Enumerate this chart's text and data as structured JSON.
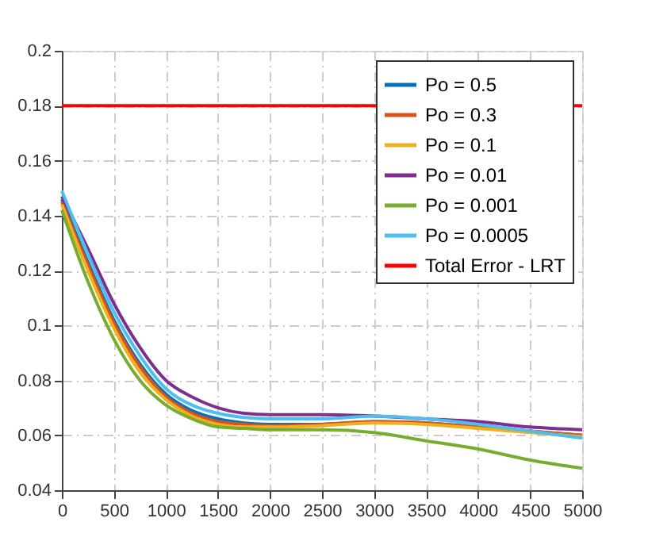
{
  "chart_data": {
    "type": "line",
    "x": [
      0,
      250,
      500,
      750,
      1000,
      1250,
      1500,
      1750,
      2000,
      2500,
      3000,
      3500,
      4000,
      4500,
      5000
    ],
    "series": [
      {
        "name": "Po = 0.5",
        "color": "#0072bd",
        "values": [
          0.146,
          0.123,
          0.102,
          0.086,
          0.075,
          0.069,
          0.066,
          0.0645,
          0.064,
          0.064,
          0.065,
          0.0645,
          0.063,
          0.0615,
          0.06
        ]
      },
      {
        "name": "Po = 0.3",
        "color": "#d95319",
        "values": [
          0.145,
          0.122,
          0.101,
          0.085,
          0.074,
          0.068,
          0.065,
          0.064,
          0.0635,
          0.064,
          0.065,
          0.0645,
          0.063,
          0.0615,
          0.06
        ]
      },
      {
        "name": "Po = 0.1",
        "color": "#edb120",
        "values": [
          0.144,
          0.12,
          0.099,
          0.083,
          0.073,
          0.067,
          0.064,
          0.063,
          0.063,
          0.0635,
          0.0645,
          0.064,
          0.0625,
          0.061,
          0.0595
        ]
      },
      {
        "name": "Po = 0.01",
        "color": "#7e2f8e",
        "values": [
          0.147,
          0.128,
          0.108,
          0.092,
          0.08,
          0.074,
          0.07,
          0.068,
          0.0675,
          0.0675,
          0.067,
          0.066,
          0.065,
          0.063,
          0.062
        ]
      },
      {
        "name": "Po = 0.001",
        "color": "#77ac30",
        "values": [
          0.142,
          0.116,
          0.095,
          0.08,
          0.071,
          0.066,
          0.063,
          0.0625,
          0.062,
          0.062,
          0.061,
          0.058,
          0.055,
          0.051,
          0.048
        ]
      },
      {
        "name": "Po = 0.0005",
        "color": "#4dbeee",
        "values": [
          0.149,
          0.126,
          0.105,
          0.089,
          0.077,
          0.071,
          0.068,
          0.0665,
          0.066,
          0.066,
          0.067,
          0.066,
          0.064,
          0.0615,
          0.059
        ]
      },
      {
        "name": "Total Error - LRT",
        "color": "#ff0000",
        "x": [
          0,
          5000
        ],
        "values": [
          0.18,
          0.18
        ]
      }
    ],
    "xlim": [
      0,
      5000
    ],
    "xticks": [
      0,
      500,
      1000,
      1500,
      2000,
      2500,
      3000,
      3500,
      4000,
      4500,
      5000
    ],
    "ylim": [
      0.04,
      0.2
    ],
    "yticks": [
      0.04,
      0.06,
      0.08,
      0.1,
      0.12,
      0.14,
      0.16,
      0.18,
      0.2
    ],
    "grid": true,
    "legend": "top right",
    "line_style": "solid",
    "marker": "none"
  }
}
